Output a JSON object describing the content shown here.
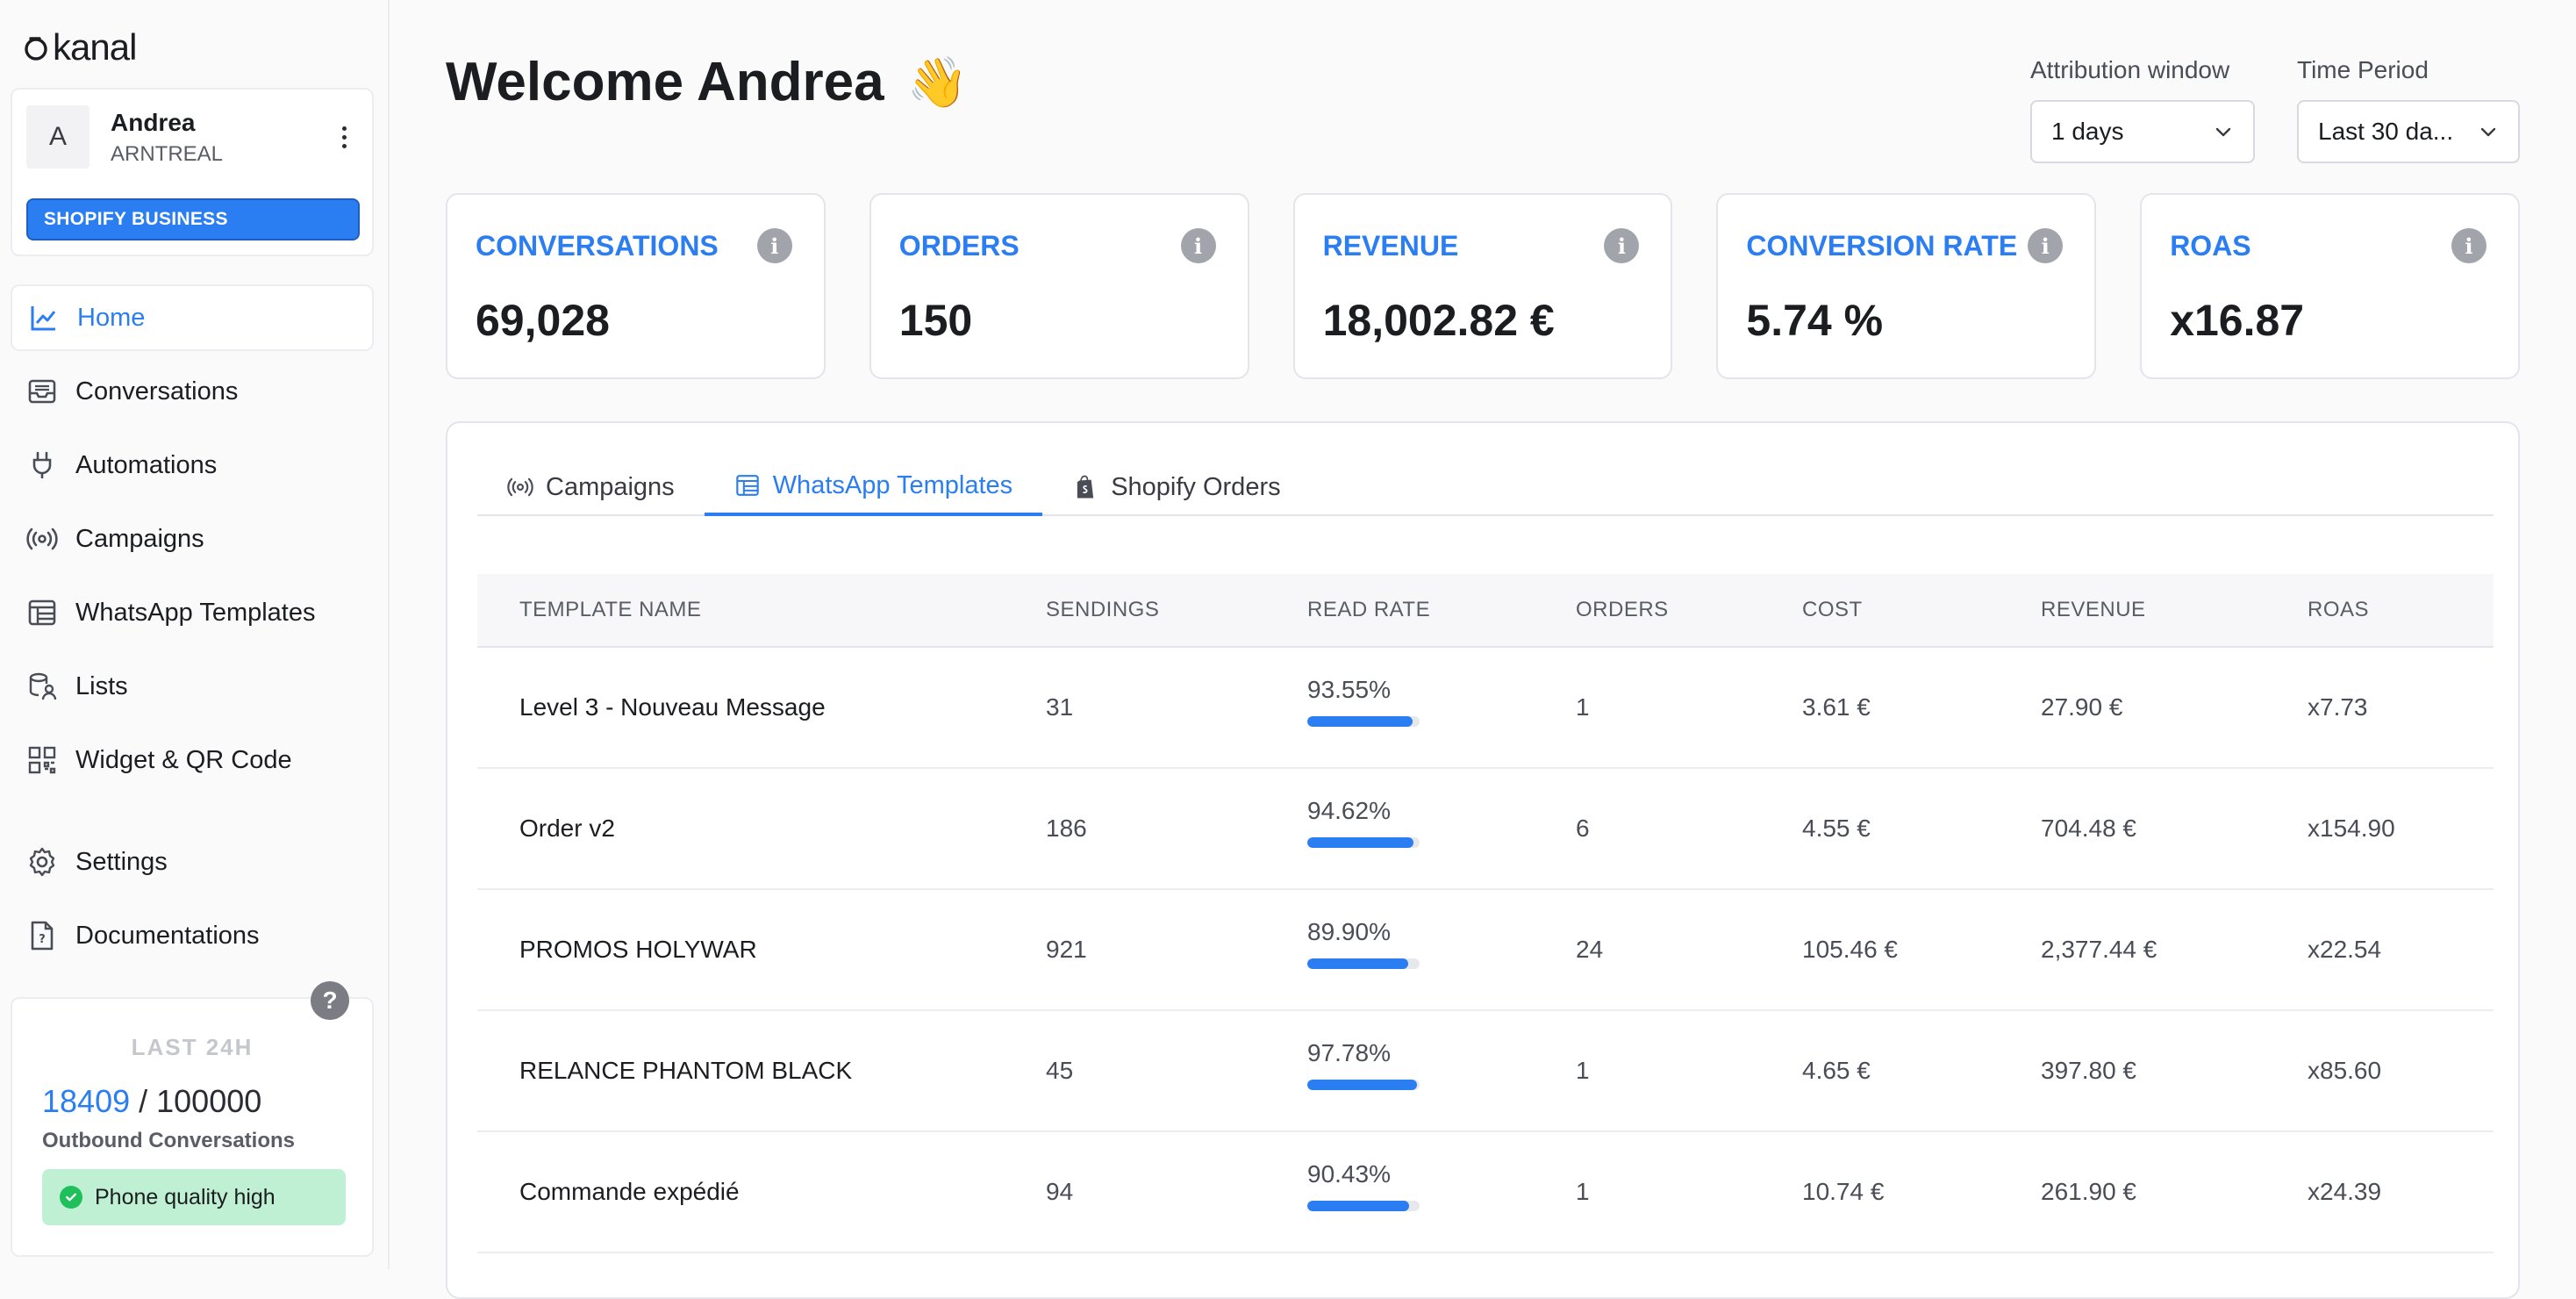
{
  "app": {
    "logo_text": "kanal"
  },
  "account": {
    "initial": "A",
    "name": "Andrea",
    "store": "ARNTREAL",
    "plan": "SHOPIFY BUSINESS"
  },
  "nav": [
    {
      "label": "Home",
      "icon": "chart-line-icon",
      "active": true
    },
    {
      "label": "Conversations",
      "icon": "inbox-icon"
    },
    {
      "label": "Automations",
      "icon": "plug-icon"
    },
    {
      "label": "Campaigns",
      "icon": "broadcast-icon"
    },
    {
      "label": "WhatsApp Templates",
      "icon": "template-icon"
    },
    {
      "label": "Lists",
      "icon": "database-user-icon"
    },
    {
      "label": "Widget & QR Code",
      "icon": "qr-code-icon"
    },
    {
      "label": "Settings",
      "icon": "gear-icon"
    },
    {
      "label": "Documentations",
      "icon": "document-help-icon"
    }
  ],
  "usage": {
    "title": "LAST 24H",
    "used": "18409",
    "separator": " / ",
    "limit": "100000",
    "label": "Outbound Conversations",
    "quality": "Phone quality high",
    "help": "?"
  },
  "header": {
    "welcome": "Welcome Andrea",
    "emoji": "👋"
  },
  "filters": {
    "attribution": {
      "label": "Attribution window",
      "value": "1 days"
    },
    "period": {
      "label": "Time Period",
      "value": "Last 30 da..."
    }
  },
  "kpis": [
    {
      "label": "CONVERSATIONS",
      "value": "69,028"
    },
    {
      "label": "ORDERS",
      "value": "150"
    },
    {
      "label": "REVENUE",
      "value": "18,002.82 €"
    },
    {
      "label": "CONVERSION RATE",
      "value": "5.74 %"
    },
    {
      "label": "ROAS",
      "value": "x16.87"
    }
  ],
  "tabs": [
    {
      "label": "Campaigns",
      "icon": "broadcast-icon"
    },
    {
      "label": "WhatsApp Templates",
      "icon": "template-icon",
      "active": true
    },
    {
      "label": "Shopify Orders",
      "icon": "shopify-bag-icon"
    }
  ],
  "table": {
    "headers": [
      "TEMPLATE NAME",
      "SENDINGS",
      "READ RATE",
      "ORDERS",
      "COST",
      "REVENUE",
      "ROAS"
    ],
    "rows": [
      {
        "name": "Level 3 - Nouveau Message",
        "sendings": "31",
        "read_rate": "93.55%",
        "read_value": 93.55,
        "orders": "1",
        "cost": "3.61 €",
        "revenue": "27.90 €",
        "roas": "x7.73"
      },
      {
        "name": "Order v2",
        "sendings": "186",
        "read_rate": "94.62%",
        "read_value": 94.62,
        "orders": "6",
        "cost": "4.55 €",
        "revenue": "704.48 €",
        "roas": "x154.90"
      },
      {
        "name": "PROMOS HOLYWAR",
        "sendings": "921",
        "read_rate": "89.90%",
        "read_value": 89.9,
        "orders": "24",
        "cost": "105.46 €",
        "revenue": "2,377.44 €",
        "roas": "x22.54"
      },
      {
        "name": "RELANCE PHANTOM BLACK",
        "sendings": "45",
        "read_rate": "97.78%",
        "read_value": 97.78,
        "orders": "1",
        "cost": "4.65 €",
        "revenue": "397.80 €",
        "roas": "x85.60"
      },
      {
        "name": "Commande expédié",
        "sendings": "94",
        "read_rate": "90.43%",
        "read_value": 90.43,
        "orders": "1",
        "cost": "10.74 €",
        "revenue": "261.90 €",
        "roas": "x24.39"
      }
    ]
  },
  "colors": {
    "accent": "#2b7df2",
    "quality_bg": "#bff0d3",
    "quality_dot": "#1fbf5c"
  }
}
